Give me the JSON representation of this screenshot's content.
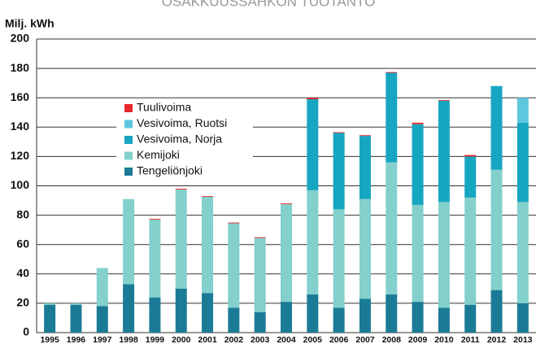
{
  "chart_data": {
    "type": "stacked_bar",
    "title": "OSAKKUUSSÄHKÖN TUOTANTO",
    "y_axis_label": "Milj. kWh",
    "categories": [
      "1995",
      "1996",
      "1997",
      "1998",
      "1999",
      "2000",
      "2001",
      "2002",
      "2003",
      "2004",
      "2005",
      "2006",
      "2007",
      "2008",
      "2009",
      "2010",
      "2011",
      "2012",
      "2013"
    ],
    "series": [
      {
        "name": "Tengeliönjoki",
        "color": "#1b7b96",
        "values": [
          19,
          19,
          18,
          33,
          24,
          30,
          27,
          17,
          14,
          21,
          26,
          17,
          23,
          26,
          21,
          17,
          19,
          29,
          20
        ]
      },
      {
        "name": "Kemijoki",
        "color": "#83d0cc",
        "values": [
          1,
          1,
          26,
          58,
          53,
          67.5,
          65.5,
          57.5,
          50.5,
          66.5,
          71,
          67,
          68,
          90,
          66,
          72,
          73,
          82,
          69
        ]
      },
      {
        "name": "Vesivoima, Norja",
        "color": "#17a6c1",
        "values": [
          0,
          0,
          0,
          0,
          0,
          0,
          0,
          0,
          0,
          0,
          62,
          52,
          43,
          61,
          55,
          69,
          28,
          57,
          54
        ]
      },
      {
        "name": "Vesivoima, Ruotsi",
        "color": "#5ec6dd",
        "values": [
          0,
          0,
          0,
          0,
          0,
          0,
          0,
          0,
          0,
          0,
          0,
          0,
          0,
          0,
          0,
          0,
          0,
          0,
          17
        ]
      },
      {
        "name": "Tuulivoima",
        "color": "#e8262b",
        "values": [
          0,
          0,
          0,
          0,
          0.5,
          0.5,
          0.5,
          0.5,
          0.5,
          0.5,
          1,
          0.5,
          0.5,
          0.5,
          1,
          0.5,
          1,
          0,
          0
        ]
      }
    ],
    "ylim": [
      0,
      200
    ],
    "yticks": [
      0,
      20,
      40,
      60,
      80,
      100,
      120,
      140,
      160,
      180,
      200
    ],
    "grid": true
  }
}
